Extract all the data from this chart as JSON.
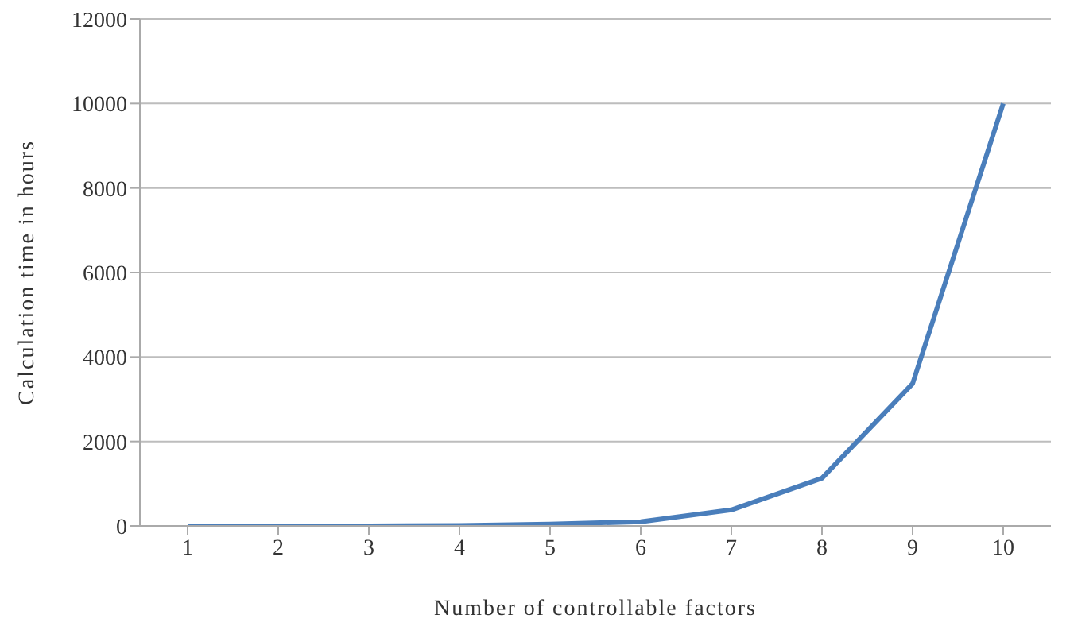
{
  "chart_data": {
    "type": "line",
    "xlabel": "Number of controllable factors",
    "ylabel": "Calculation time in hours",
    "categories": [
      "1",
      "2",
      "3",
      "4",
      "5",
      "6",
      "7",
      "8",
      "9",
      "10"
    ],
    "series": [
      {
        "color": "#4a7ebb",
        "values": [
          0,
          0,
          0,
          10,
          40,
          100,
          380,
          1130,
          3370,
          10000
        ]
      }
    ],
    "ylim": [
      0,
      12000
    ],
    "yticks": [
      0,
      2000,
      4000,
      6000,
      8000,
      10000,
      12000
    ],
    "grid": "y",
    "legend": false,
    "marker": "none",
    "line_style": "solid"
  }
}
